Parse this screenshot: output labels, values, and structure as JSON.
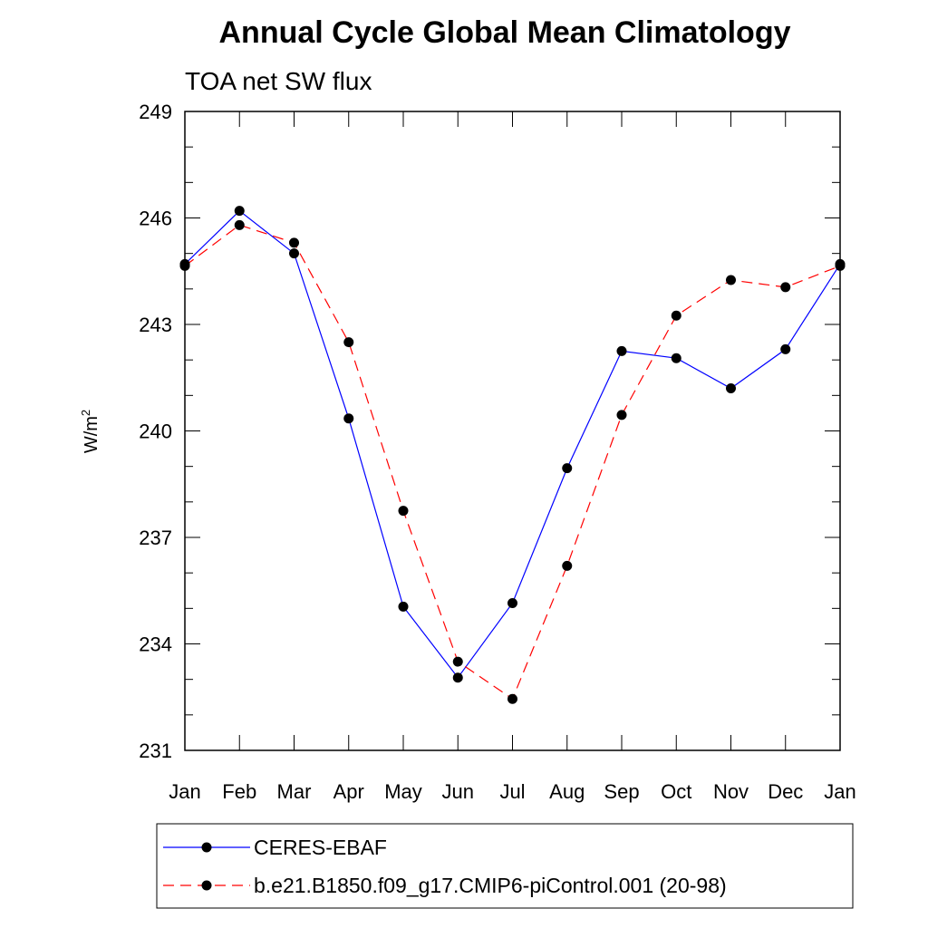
{
  "chart_data": {
    "type": "line",
    "title": "Annual Cycle Global Mean Climatology",
    "subtitle": "TOA net SW flux",
    "xlabel": "",
    "ylabel": "W/m",
    "ylabel_superscript": "2",
    "categories": [
      "Jan",
      "Feb",
      "Mar",
      "Apr",
      "May",
      "Jun",
      "Jul",
      "Aug",
      "Sep",
      "Oct",
      "Nov",
      "Dec",
      "Jan"
    ],
    "ylim": [
      231,
      249
    ],
    "yticks": [
      231,
      234,
      237,
      240,
      243,
      246,
      249
    ],
    "series": [
      {
        "name": "CERES-EBAF",
        "color": "#0000ff",
        "dash": "solid",
        "values": [
          244.7,
          246.2,
          245.0,
          240.35,
          235.05,
          233.05,
          235.15,
          238.95,
          242.25,
          242.05,
          241.2,
          242.3,
          244.7
        ]
      },
      {
        "name": "b.e21.B1850.f09_g17.CMIP6-piControl.001 (20-98)",
        "color": "#ff0000",
        "dash": "dashed",
        "values": [
          244.65,
          245.8,
          245.3,
          242.5,
          237.75,
          233.5,
          232.45,
          236.2,
          240.45,
          243.25,
          244.25,
          244.05,
          244.65
        ]
      }
    ]
  }
}
